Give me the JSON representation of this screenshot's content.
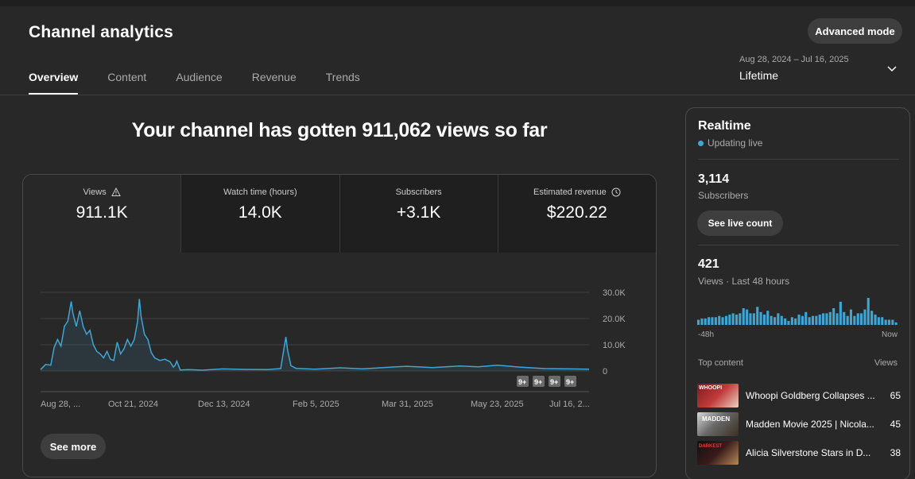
{
  "header": {
    "title": "Channel analytics",
    "advanced_button": "Advanced mode",
    "tabs": [
      {
        "label": "Overview",
        "active": true
      },
      {
        "label": "Content",
        "active": false
      },
      {
        "label": "Audience",
        "active": false
      },
      {
        "label": "Revenue",
        "active": false
      },
      {
        "label": "Trends",
        "active": false
      }
    ],
    "date_range": "Aug 28, 2024 – Jul 16, 2025",
    "date_label": "Lifetime"
  },
  "overview": {
    "headline": "Your channel has gotten 911,062 views so far",
    "metrics": [
      {
        "label": "Views",
        "value": "911.1K",
        "icon": "warning-icon"
      },
      {
        "label": "Watch time (hours)",
        "value": "14.0K"
      },
      {
        "label": "Subscribers",
        "value": "+3.1K"
      },
      {
        "label": "Estimated revenue",
        "value": "$220.22",
        "icon": "clock-icon"
      }
    ],
    "see_more": "See more"
  },
  "chart_data": {
    "type": "area",
    "x_tick_labels": [
      "Aug 28, ...",
      "Oct 21, 2024",
      "Dec 13, 2024",
      "Feb 5, 2025",
      "Mar 31, 2025",
      "May 23, 2025",
      "Jul 16, 2..."
    ],
    "y_tick_labels": [
      "30.0K",
      "20.0K",
      "10.0K",
      "0"
    ],
    "ylim": [
      0,
      30000
    ],
    "x_start": "2024-08-28",
    "x_end": "2025-07-16",
    "series": [
      {
        "color": "#3ea6d4",
        "points": [
          [
            "2024-08-28",
            500
          ],
          [
            "2024-08-31",
            2500
          ],
          [
            "2024-09-03",
            2200
          ],
          [
            "2024-09-05",
            9000
          ],
          [
            "2024-09-07",
            12000
          ],
          [
            "2024-09-09",
            9500
          ],
          [
            "2024-09-11",
            17000
          ],
          [
            "2024-09-13",
            19000
          ],
          [
            "2024-09-15",
            26500
          ],
          [
            "2024-09-16",
            22000
          ],
          [
            "2024-09-18",
            17000
          ],
          [
            "2024-09-20",
            23000
          ],
          [
            "2024-09-22",
            17000
          ],
          [
            "2024-09-24",
            14000
          ],
          [
            "2024-09-26",
            15500
          ],
          [
            "2024-09-28",
            10000
          ],
          [
            "2024-09-30",
            7500
          ],
          [
            "2024-10-02",
            6500
          ],
          [
            "2024-10-04",
            5000
          ],
          [
            "2024-10-06",
            7500
          ],
          [
            "2024-10-08",
            4500
          ],
          [
            "2024-10-10",
            4000
          ],
          [
            "2024-10-12",
            11000
          ],
          [
            "2024-10-14",
            6500
          ],
          [
            "2024-10-16",
            8500
          ],
          [
            "2024-10-18",
            12000
          ],
          [
            "2024-10-20",
            9500
          ],
          [
            "2024-10-22",
            12000
          ],
          [
            "2024-10-24",
            19000
          ],
          [
            "2024-10-25",
            27500
          ],
          [
            "2024-10-26",
            21000
          ],
          [
            "2024-10-28",
            14000
          ],
          [
            "2024-10-30",
            12000
          ],
          [
            "2024-11-01",
            7000
          ],
          [
            "2024-11-03",
            5000
          ],
          [
            "2024-11-06",
            4000
          ],
          [
            "2024-11-09",
            4500
          ],
          [
            "2024-11-12",
            3500
          ],
          [
            "2024-11-14",
            1500
          ],
          [
            "2024-11-15",
            2200
          ],
          [
            "2024-11-16",
            3800
          ],
          [
            "2024-11-18",
            400
          ],
          [
            "2024-11-23",
            500
          ],
          [
            "2024-12-01",
            300
          ],
          [
            "2024-12-13",
            800
          ],
          [
            "2024-12-25",
            600
          ],
          [
            "2025-01-08",
            500
          ],
          [
            "2025-01-16",
            900
          ],
          [
            "2025-01-19",
            13000
          ],
          [
            "2025-01-20",
            8000
          ],
          [
            "2025-01-22",
            2000
          ],
          [
            "2025-01-25",
            1000
          ],
          [
            "2025-02-05",
            700
          ],
          [
            "2025-02-20",
            1200
          ],
          [
            "2025-03-05",
            800
          ],
          [
            "2025-03-20",
            1400
          ],
          [
            "2025-03-31",
            1800
          ],
          [
            "2025-04-15",
            1300
          ],
          [
            "2025-05-01",
            1900
          ],
          [
            "2025-05-12",
            1600
          ],
          [
            "2025-05-23",
            2200
          ],
          [
            "2025-06-05",
            1500
          ],
          [
            "2025-06-20",
            900
          ],
          [
            "2025-07-05",
            800
          ],
          [
            "2025-07-16",
            700
          ]
        ]
      }
    ],
    "annotations": [
      "9+",
      "9+",
      "9+",
      "9+"
    ]
  },
  "realtime": {
    "title": "Realtime",
    "status": "Updating live",
    "subscribers_value": "3,114",
    "subscribers_label": "Subscribers",
    "live_button": "See live count",
    "views_value": "421",
    "views_label": "Views · Last 48 hours",
    "bars": [
      4,
      5,
      5,
      6,
      6,
      6,
      7,
      6,
      7,
      8,
      9,
      8,
      9,
      13,
      12,
      9,
      9,
      14,
      10,
      8,
      11,
      7,
      6,
      9,
      7,
      5,
      3,
      6,
      5,
      8,
      7,
      10,
      6,
      7,
      7,
      8,
      9,
      9,
      10,
      13,
      9,
      18,
      10,
      7,
      12,
      7,
      9,
      9,
      12,
      21,
      11,
      8,
      6,
      6,
      4,
      4,
      4,
      2
    ],
    "bars_max": 21,
    "axis_left": "-48h",
    "axis_right": "Now",
    "top_content_label": "Top content",
    "views_column_label": "Views",
    "top_content": [
      {
        "title": "Whoopi Goldberg Collapses ...",
        "views": "65",
        "thumb_text": "WHOOPI"
      },
      {
        "title": "Madden Movie 2025 | Nicola...",
        "views": "45",
        "thumb_text": "MADDEN"
      },
      {
        "title": "Alicia Silverstone Stars in D...",
        "views": "38",
        "thumb_text": "DARKEST"
      }
    ]
  },
  "colors": {
    "accent": "#3ea6d4",
    "background": "#282828",
    "panel": "#1f1f1f"
  }
}
